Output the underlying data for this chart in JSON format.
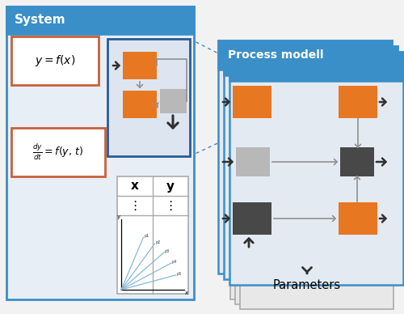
{
  "bg_color": "#f2f2f2",
  "system_header_color": "#3a8fc8",
  "system_border_color": "#3a8fc8",
  "system_bg": "#e8eef5",
  "orange_color": "#e87722",
  "gray_light_color": "#b8b8b8",
  "gray_dark_color": "#484848",
  "inner_border_color": "#2a5a9a",
  "formula_border_color": "#c8603a",
  "white": "#ffffff",
  "process_header_color": "#3a8fc8",
  "process_bg": "#e4eaf2",
  "params_bg": "#e8e8e8",
  "arrow_dark": "#303030",
  "connector_color": "#909090",
  "dashed_color": "#4488bb",
  "title": "System",
  "process_title": "Process modell",
  "params_label": "Parameters"
}
